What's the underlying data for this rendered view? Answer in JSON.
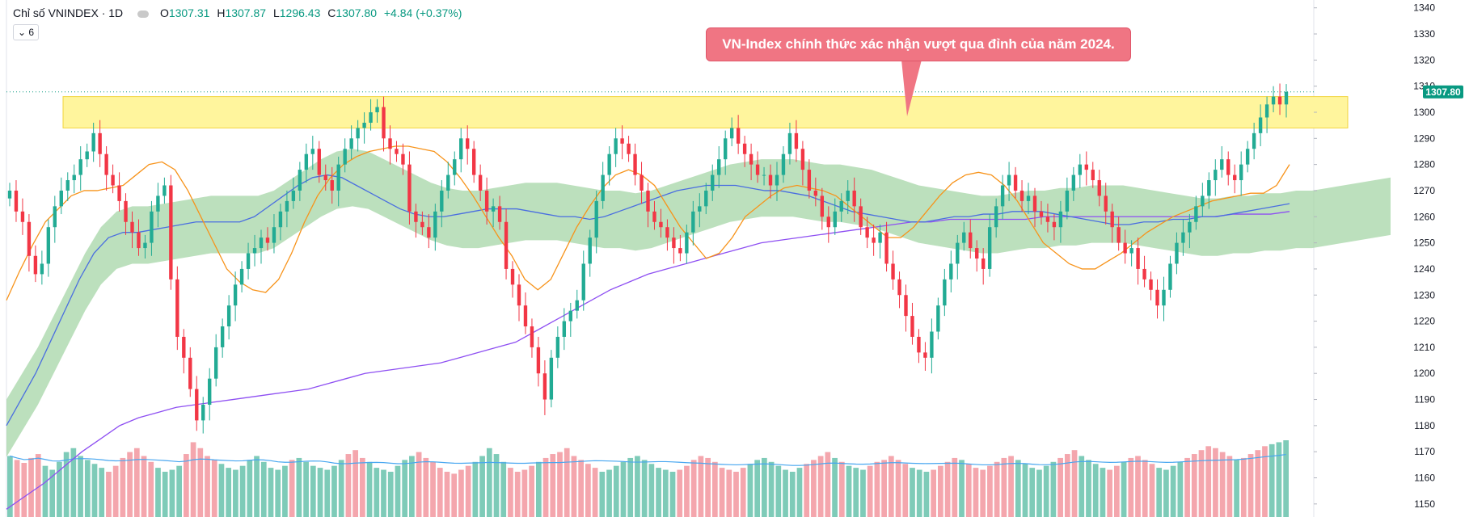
{
  "legend": {
    "title": "Chỉ số VNINDEX · 1D",
    "open_label": "O",
    "open": "1307.31",
    "high_label": "H",
    "high": "1307.87",
    "low_label": "L",
    "low": "1296.43",
    "close_label": "C",
    "close": "1307.80",
    "change": "+4.84 (+0.37%)",
    "collapse_icon": "chevron-down-icon",
    "indicator_count": "6"
  },
  "annotation": {
    "text": "VN-Index chính thức xác nhận vượt qua đỉnh của năm 2024."
  },
  "colors": {
    "up": "#22ab94",
    "down": "#f23645",
    "kumo_bull": "#a5d6a7",
    "kumo_bear": "#f8bbd0",
    "ma_fast": "#f7931a",
    "ma_mid": "#4a6ee0",
    "ma_slow": "#8e4ff2",
    "vol_up": "#7ecbb8",
    "vol_down": "#f4a6ad",
    "vol_ma": "#47a6f0",
    "resistance_zone": "#fff59d",
    "callout": "#f07583",
    "price_tag": "#089981"
  },
  "chart_data": {
    "type": "candlestick",
    "title": "Chỉ số VNINDEX · 1D",
    "ylim": [
      1145,
      1343
    ],
    "y_ticks": [
      1340,
      1330,
      1320,
      1310,
      1300,
      1290,
      1280,
      1270,
      1260,
      1250,
      1240,
      1230,
      1220,
      1210,
      1200,
      1190,
      1180,
      1170,
      1160,
      1150
    ],
    "last_price_label": "1307.80",
    "resistance_zone": [
      1294,
      1306
    ],
    "closes": [
      1270,
      1262,
      1258,
      1245,
      1238,
      1242,
      1256,
      1264,
      1270,
      1274,
      1276,
      1282,
      1285,
      1292,
      1284,
      1276,
      1272,
      1266,
      1258,
      1254,
      1248,
      1250,
      1262,
      1268,
      1272,
      1236,
      1214,
      1206,
      1194,
      1182,
      1188,
      1198,
      1210,
      1218,
      1226,
      1234,
      1240,
      1246,
      1248,
      1252,
      1250,
      1256,
      1262,
      1266,
      1270,
      1278,
      1284,
      1286,
      1276,
      1274,
      1270,
      1280,
      1286,
      1290,
      1294,
      1296,
      1300,
      1302,
      1290,
      1286,
      1284,
      1280,
      1262,
      1258,
      1256,
      1252,
      1262,
      1270,
      1276,
      1282,
      1290,
      1286,
      1276,
      1270,
      1262,
      1264,
      1258,
      1240,
      1234,
      1226,
      1218,
      1210,
      1200,
      1190,
      1206,
      1214,
      1220,
      1224,
      1228,
      1242,
      1252,
      1266,
      1276,
      1284,
      1290,
      1288,
      1284,
      1276,
      1270,
      1262,
      1258,
      1256,
      1252,
      1248,
      1246,
      1254,
      1262,
      1264,
      1270,
      1276,
      1282,
      1290,
      1294,
      1288,
      1284,
      1280,
      1276,
      1276,
      1272,
      1276,
      1284,
      1292,
      1286,
      1278,
      1270,
      1268,
      1260,
      1256,
      1262,
      1266,
      1270,
      1264,
      1256,
      1252,
      1250,
      1254,
      1242,
      1236,
      1230,
      1222,
      1214,
      1208,
      1206,
      1216,
      1226,
      1236,
      1242,
      1250,
      1254,
      1248,
      1244,
      1240,
      1256,
      1264,
      1272,
      1276,
      1270,
      1266,
      1268,
      1262,
      1260,
      1258,
      1256,
      1262,
      1270,
      1276,
      1280,
      1278,
      1274,
      1268,
      1262,
      1256,
      1250,
      1246,
      1248,
      1240,
      1236,
      1232,
      1226,
      1232,
      1242,
      1250,
      1254,
      1258,
      1264,
      1268,
      1274,
      1278,
      1282,
      1276,
      1274,
      1280,
      1286,
      1292,
      1298,
      1303,
      1306,
      1303,
      1307.8
    ],
    "ma_fast": [
      1228,
      1239,
      1249,
      1258,
      1263,
      1268,
      1270,
      1270,
      1271,
      1272,
      1276,
      1280,
      1281,
      1278,
      1270,
      1260,
      1250,
      1240,
      1235,
      1232,
      1231,
      1236,
      1246,
      1258,
      1268,
      1275,
      1280,
      1283,
      1285,
      1286,
      1287,
      1287,
      1286,
      1285,
      1281,
      1275,
      1268,
      1260,
      1252,
      1245,
      1236,
      1232,
      1236,
      1246,
      1256,
      1264,
      1271,
      1276,
      1278,
      1276,
      1272,
      1264,
      1256,
      1250,
      1244,
      1246,
      1252,
      1260,
      1264,
      1268,
      1271,
      1272,
      1271,
      1270,
      1268,
      1264,
      1260,
      1256,
      1252,
      1252,
      1256,
      1262,
      1268,
      1273,
      1276,
      1277,
      1276,
      1272,
      1266,
      1258,
      1250,
      1246,
      1242,
      1240,
      1240,
      1243,
      1246,
      1250,
      1254,
      1257,
      1260,
      1262,
      1264,
      1266,
      1267,
      1268,
      1269,
      1269,
      1272,
      1280
    ],
    "ma_mid": [
      1180,
      1190,
      1200,
      1212,
      1224,
      1236,
      1246,
      1252,
      1254,
      1254,
      1255,
      1256,
      1257,
      1258,
      1258,
      1258,
      1258,
      1260,
      1264,
      1268,
      1272,
      1275,
      1276,
      1275,
      1272,
      1269,
      1266,
      1263,
      1261,
      1260,
      1260,
      1261,
      1262,
      1263,
      1263,
      1263,
      1262,
      1261,
      1260,
      1260,
      1259,
      1260,
      1262,
      1264,
      1266,
      1268,
      1270,
      1271,
      1272,
      1272,
      1272,
      1271,
      1270,
      1270,
      1269,
      1268,
      1266,
      1264,
      1262,
      1261,
      1260,
      1259,
      1258,
      1258,
      1259,
      1260,
      1260,
      1261,
      1261,
      1262,
      1262,
      1262,
      1261,
      1260,
      1259,
      1258,
      1257,
      1257,
      1258,
      1258,
      1259,
      1259,
      1260,
      1260,
      1261,
      1262,
      1263,
      1264,
      1265
    ],
    "ma_slow": [
      1148,
      1153,
      1158,
      1164,
      1170,
      1175,
      1180,
      1183,
      1185,
      1187,
      1188,
      1189,
      1190,
      1191,
      1192,
      1193,
      1194,
      1196,
      1198,
      1200,
      1201,
      1202,
      1203,
      1204,
      1206,
      1208,
      1210,
      1212,
      1216,
      1220,
      1224,
      1228,
      1232,
      1235,
      1238,
      1240,
      1242,
      1244,
      1246,
      1248,
      1250,
      1251,
      1252,
      1253,
      1254,
      1255,
      1256,
      1257,
      1258,
      1258,
      1259,
      1259,
      1259,
      1259,
      1259,
      1260,
      1260,
      1260,
      1260,
      1260,
      1260,
      1260,
      1260,
      1260,
      1260,
      1261,
      1261,
      1261,
      1262
    ],
    "volumes": [
      62,
      58,
      55,
      60,
      64,
      52,
      48,
      56,
      66,
      70,
      62,
      58,
      54,
      50,
      46,
      52,
      60,
      66,
      70,
      62,
      56,
      50,
      46,
      48,
      52,
      64,
      76,
      70,
      62,
      58,
      54,
      50,
      48,
      52,
      58,
      62,
      56,
      50,
      48,
      52,
      58,
      60,
      56,
      52,
      50,
      48,
      52,
      58,
      64,
      68,
      60,
      56,
      50,
      48,
      46,
      52,
      58,
      62,
      66,
      60,
      56,
      50,
      46,
      44,
      48,
      52,
      56,
      62,
      70,
      64,
      56,
      50,
      46,
      48,
      52,
      56,
      60,
      64,
      66,
      70,
      62,
      58,
      54,
      50,
      46,
      48,
      52,
      56,
      60,
      62,
      58,
      54,
      50,
      48,
      46,
      48,
      52,
      58,
      62,
      60,
      56,
      50,
      48,
      46,
      50,
      54,
      58,
      60,
      56,
      52,
      48,
      46,
      50,
      54,
      58,
      62,
      66,
      60,
      56,
      52,
      50,
      48,
      52,
      56,
      58,
      62,
      58,
      54,
      50,
      48,
      46,
      48,
      52,
      56,
      60,
      58,
      54,
      50,
      48,
      52,
      56,
      60,
      62,
      58,
      54,
      50,
      48,
      52,
      56,
      60,
      64,
      68,
      62,
      58,
      54,
      50,
      48,
      52,
      56,
      60,
      62,
      58,
      54,
      50,
      48,
      52,
      56,
      60,
      64,
      68,
      72,
      70,
      66,
      62,
      58,
      60,
      64,
      68,
      72,
      74,
      76,
      78
    ]
  }
}
